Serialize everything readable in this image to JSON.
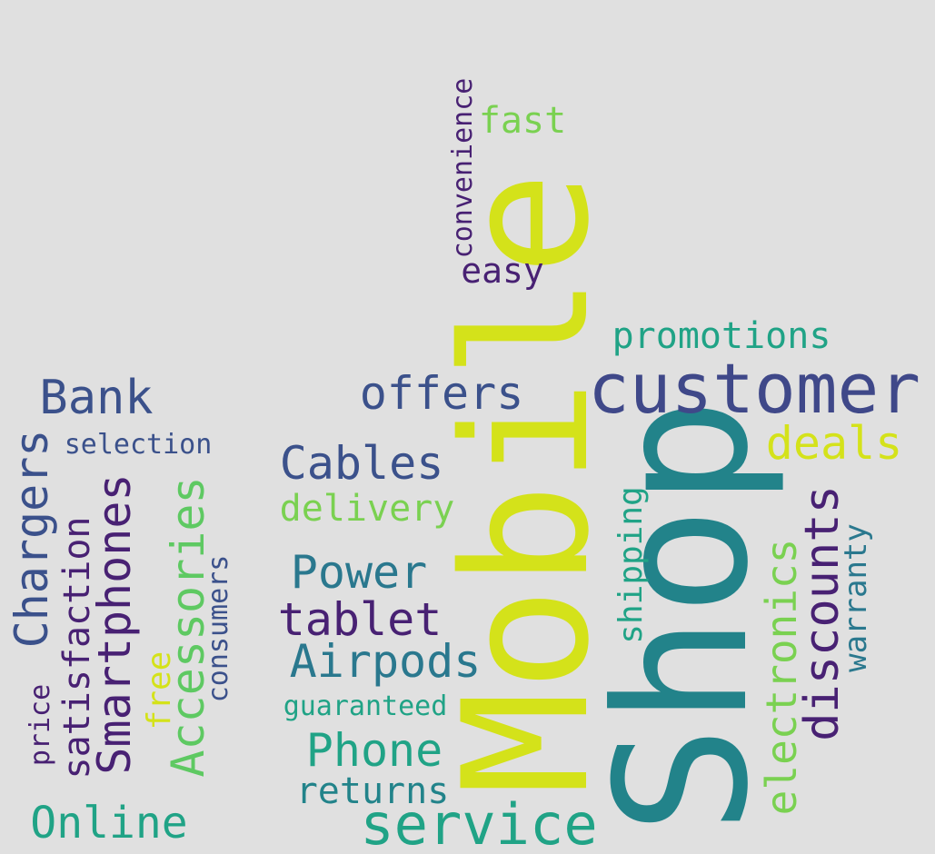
{
  "words": [
    {
      "text": "Shop",
      "color": "#22838a"
    },
    {
      "text": "Mobile",
      "color": "#d4e21a"
    },
    {
      "text": "service",
      "color": "#20a386"
    },
    {
      "text": "customer",
      "color": "#3f4889"
    },
    {
      "text": "electronics",
      "color": "#7ad151"
    },
    {
      "text": "discounts",
      "color": "#482173"
    },
    {
      "text": "deals",
      "color": "#d4e21a"
    },
    {
      "text": "promotions",
      "color": "#20a386"
    },
    {
      "text": "warranty",
      "color": "#2a788e"
    },
    {
      "text": "shipping",
      "color": "#20a386"
    },
    {
      "text": "offers",
      "color": "#3b518b"
    },
    {
      "text": "Cables",
      "color": "#3b518b"
    },
    {
      "text": "delivery",
      "color": "#7ad151"
    },
    {
      "text": "Power",
      "color": "#2a788e"
    },
    {
      "text": "tablet",
      "color": "#482173"
    },
    {
      "text": "Airpods",
      "color": "#2a788e"
    },
    {
      "text": "guaranteed",
      "color": "#20a386"
    },
    {
      "text": "Phone",
      "color": "#20a386"
    },
    {
      "text": "returns",
      "color": "#22838a"
    },
    {
      "text": "easy",
      "color": "#482173"
    },
    {
      "text": "convenience",
      "color": "#482173"
    },
    {
      "text": "fast",
      "color": "#7ad151"
    },
    {
      "text": "Bank",
      "color": "#3b518b"
    },
    {
      "text": "selection",
      "color": "#3b518b"
    },
    {
      "text": "Chargers",
      "color": "#3b518b"
    },
    {
      "text": "satisfaction",
      "color": "#482173"
    },
    {
      "text": "Smartphones",
      "color": "#482173"
    },
    {
      "text": "Accessories",
      "color": "#5ec962"
    },
    {
      "text": "consumers",
      "color": "#3b518b"
    },
    {
      "text": "free",
      "color": "#d4e21a"
    },
    {
      "text": "price",
      "color": "#482173"
    },
    {
      "text": "Online",
      "color": "#20a386"
    }
  ]
}
